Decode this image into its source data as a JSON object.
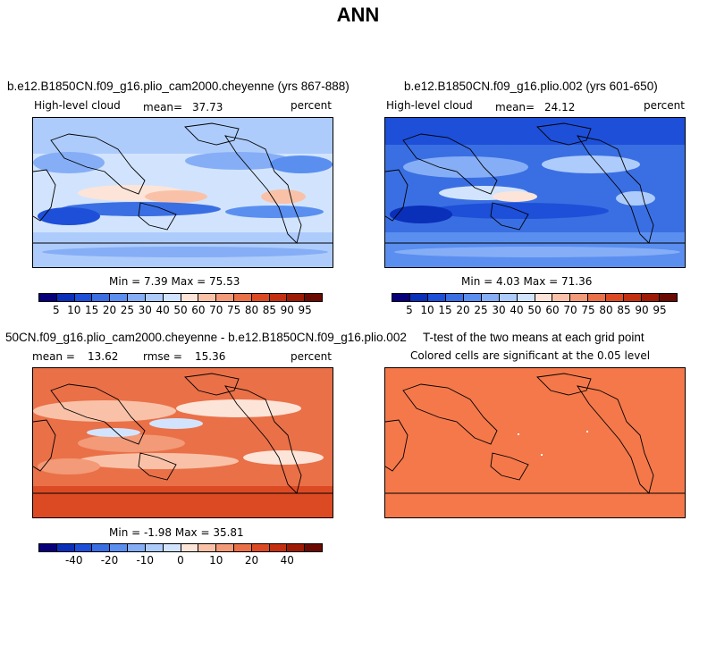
{
  "figure_title": "ANN",
  "chart_data": [
    {
      "type": "heatmap",
      "title": "b.e12.B1850CN.f09_g16.plio_cam2000.cheyenne (yrs 867-888)",
      "variable": "High-level cloud",
      "mean_label": "mean=",
      "mean": "37.73",
      "units": "percent",
      "min_max_label": "Min =   7.39  Max =   75.53",
      "min": 7.39,
      "max": 75.53,
      "colorbar_ticks": [
        "5",
        "10",
        "15",
        "20",
        "25",
        "30",
        "40",
        "50",
        "60",
        "70",
        "75",
        "80",
        "85",
        "90",
        "95"
      ],
      "colorbar_colors": [
        "#08007a",
        "#0a2fb8",
        "#1d4fd8",
        "#3a6fe3",
        "#5a8ff0",
        "#86aef6",
        "#aeccfb",
        "#d2e4fd",
        "#fde4d8",
        "#f9c2a8",
        "#f39a78",
        "#ea7048",
        "#dc4a24",
        "#c42f10",
        "#9e1a05",
        "#6a0a02"
      ]
    },
    {
      "type": "heatmap",
      "title": "b.e12.B1850CN.f09_g16.plio.002 (yrs 601-650)",
      "variable": "High-level cloud",
      "mean_label": "mean=",
      "mean": "24.12",
      "units": "percent",
      "min_max_label": "Min =   4.03  Max =   71.36",
      "min": 4.03,
      "max": 71.36,
      "colorbar_ticks": [
        "5",
        "10",
        "15",
        "20",
        "25",
        "30",
        "40",
        "50",
        "60",
        "70",
        "75",
        "80",
        "85",
        "90",
        "95"
      ],
      "colorbar_colors": [
        "#08007a",
        "#0a2fb8",
        "#1d4fd8",
        "#3a6fe3",
        "#5a8ff0",
        "#86aef6",
        "#aeccfb",
        "#d2e4fd",
        "#fde4d8",
        "#f9c2a8",
        "#f39a78",
        "#ea7048",
        "#dc4a24",
        "#c42f10",
        "#9e1a05",
        "#6a0a02"
      ]
    },
    {
      "type": "heatmap",
      "title": "50CN.f09_g16.plio_cam2000.cheyenne - b.e12.B1850CN.f09_g16.plio.002",
      "mean_label": "mean =",
      "mean": "13.62",
      "rmse_label": "rmse =",
      "rmse": "15.36",
      "units": "percent",
      "min_max_label": "Min =  -1.98  Max =   35.81",
      "min": -1.98,
      "max": 35.81,
      "colorbar_ticks": [
        "-40",
        "-20",
        "-10",
        "0",
        "10",
        "20",
        "40"
      ],
      "colorbar_colors": [
        "#08007a",
        "#0a2fb8",
        "#1d4fd8",
        "#3a6fe3",
        "#5a8ff0",
        "#86aef6",
        "#aeccfb",
        "#d2e4fd",
        "#fde4d8",
        "#f9c2a8",
        "#f39a78",
        "#ea7048",
        "#dc4a24",
        "#c42f10",
        "#9e1a05",
        "#6a0a02"
      ]
    },
    {
      "type": "heatmap",
      "title": "T-test of the two means at each grid point",
      "subtitle": "Colored cells are significant at the 0.05 level",
      "fill_color": "#f4784a"
    }
  ]
}
